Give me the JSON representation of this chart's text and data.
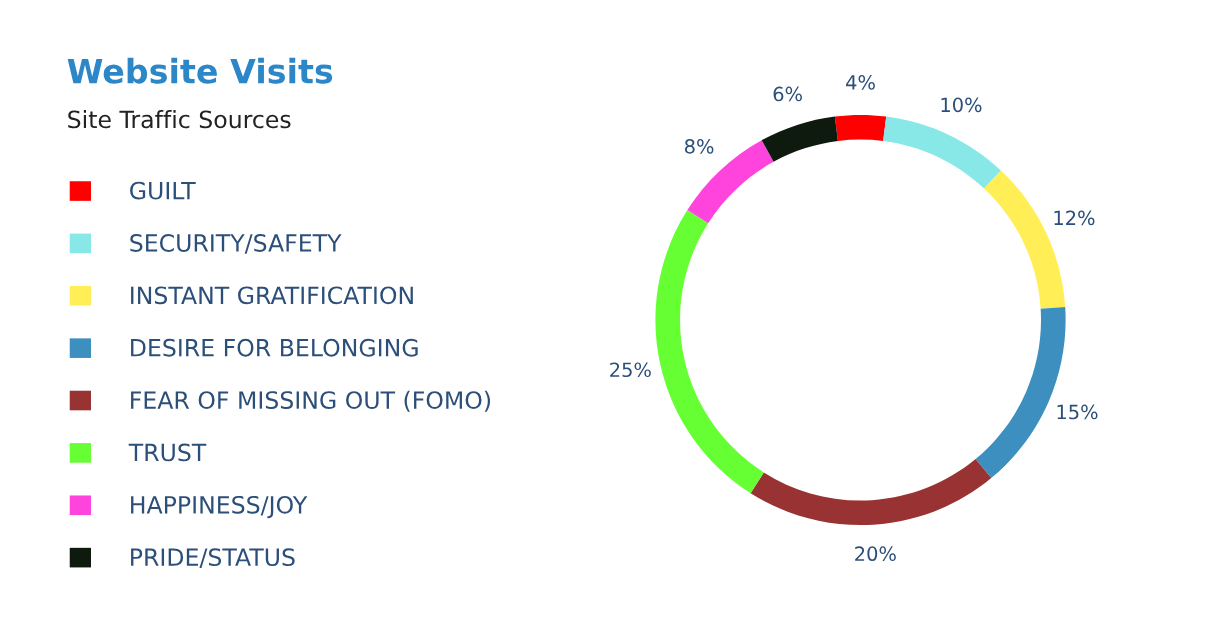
{
  "chart_data": {
    "type": "donut",
    "title": "Website Visits",
    "subtitle": "Site Traffic Sources",
    "categories": [
      "GUILT",
      "SECURITY/SAFETY",
      "INSTANT GRATIFICATION",
      "DESIRE FOR BELONGING",
      "FEAR OF MISSING OUT (FOMO)",
      "TRUST",
      "HAPPINESS/JOY",
      "PRIDE/STATUS"
    ],
    "values": [
      4,
      10,
      12,
      15,
      20,
      25,
      8,
      6
    ],
    "value_labels": [
      "4%",
      "10%",
      "12%",
      "15%",
      "20%",
      "25%",
      "8%",
      "6%"
    ],
    "colors": [
      "#ff0000",
      "#88e8e8",
      "#ffee55",
      "#3d8fbf",
      "#993333",
      "#66ff33",
      "#ff44dd",
      "#0d1a0d"
    ],
    "legend": "left"
  }
}
